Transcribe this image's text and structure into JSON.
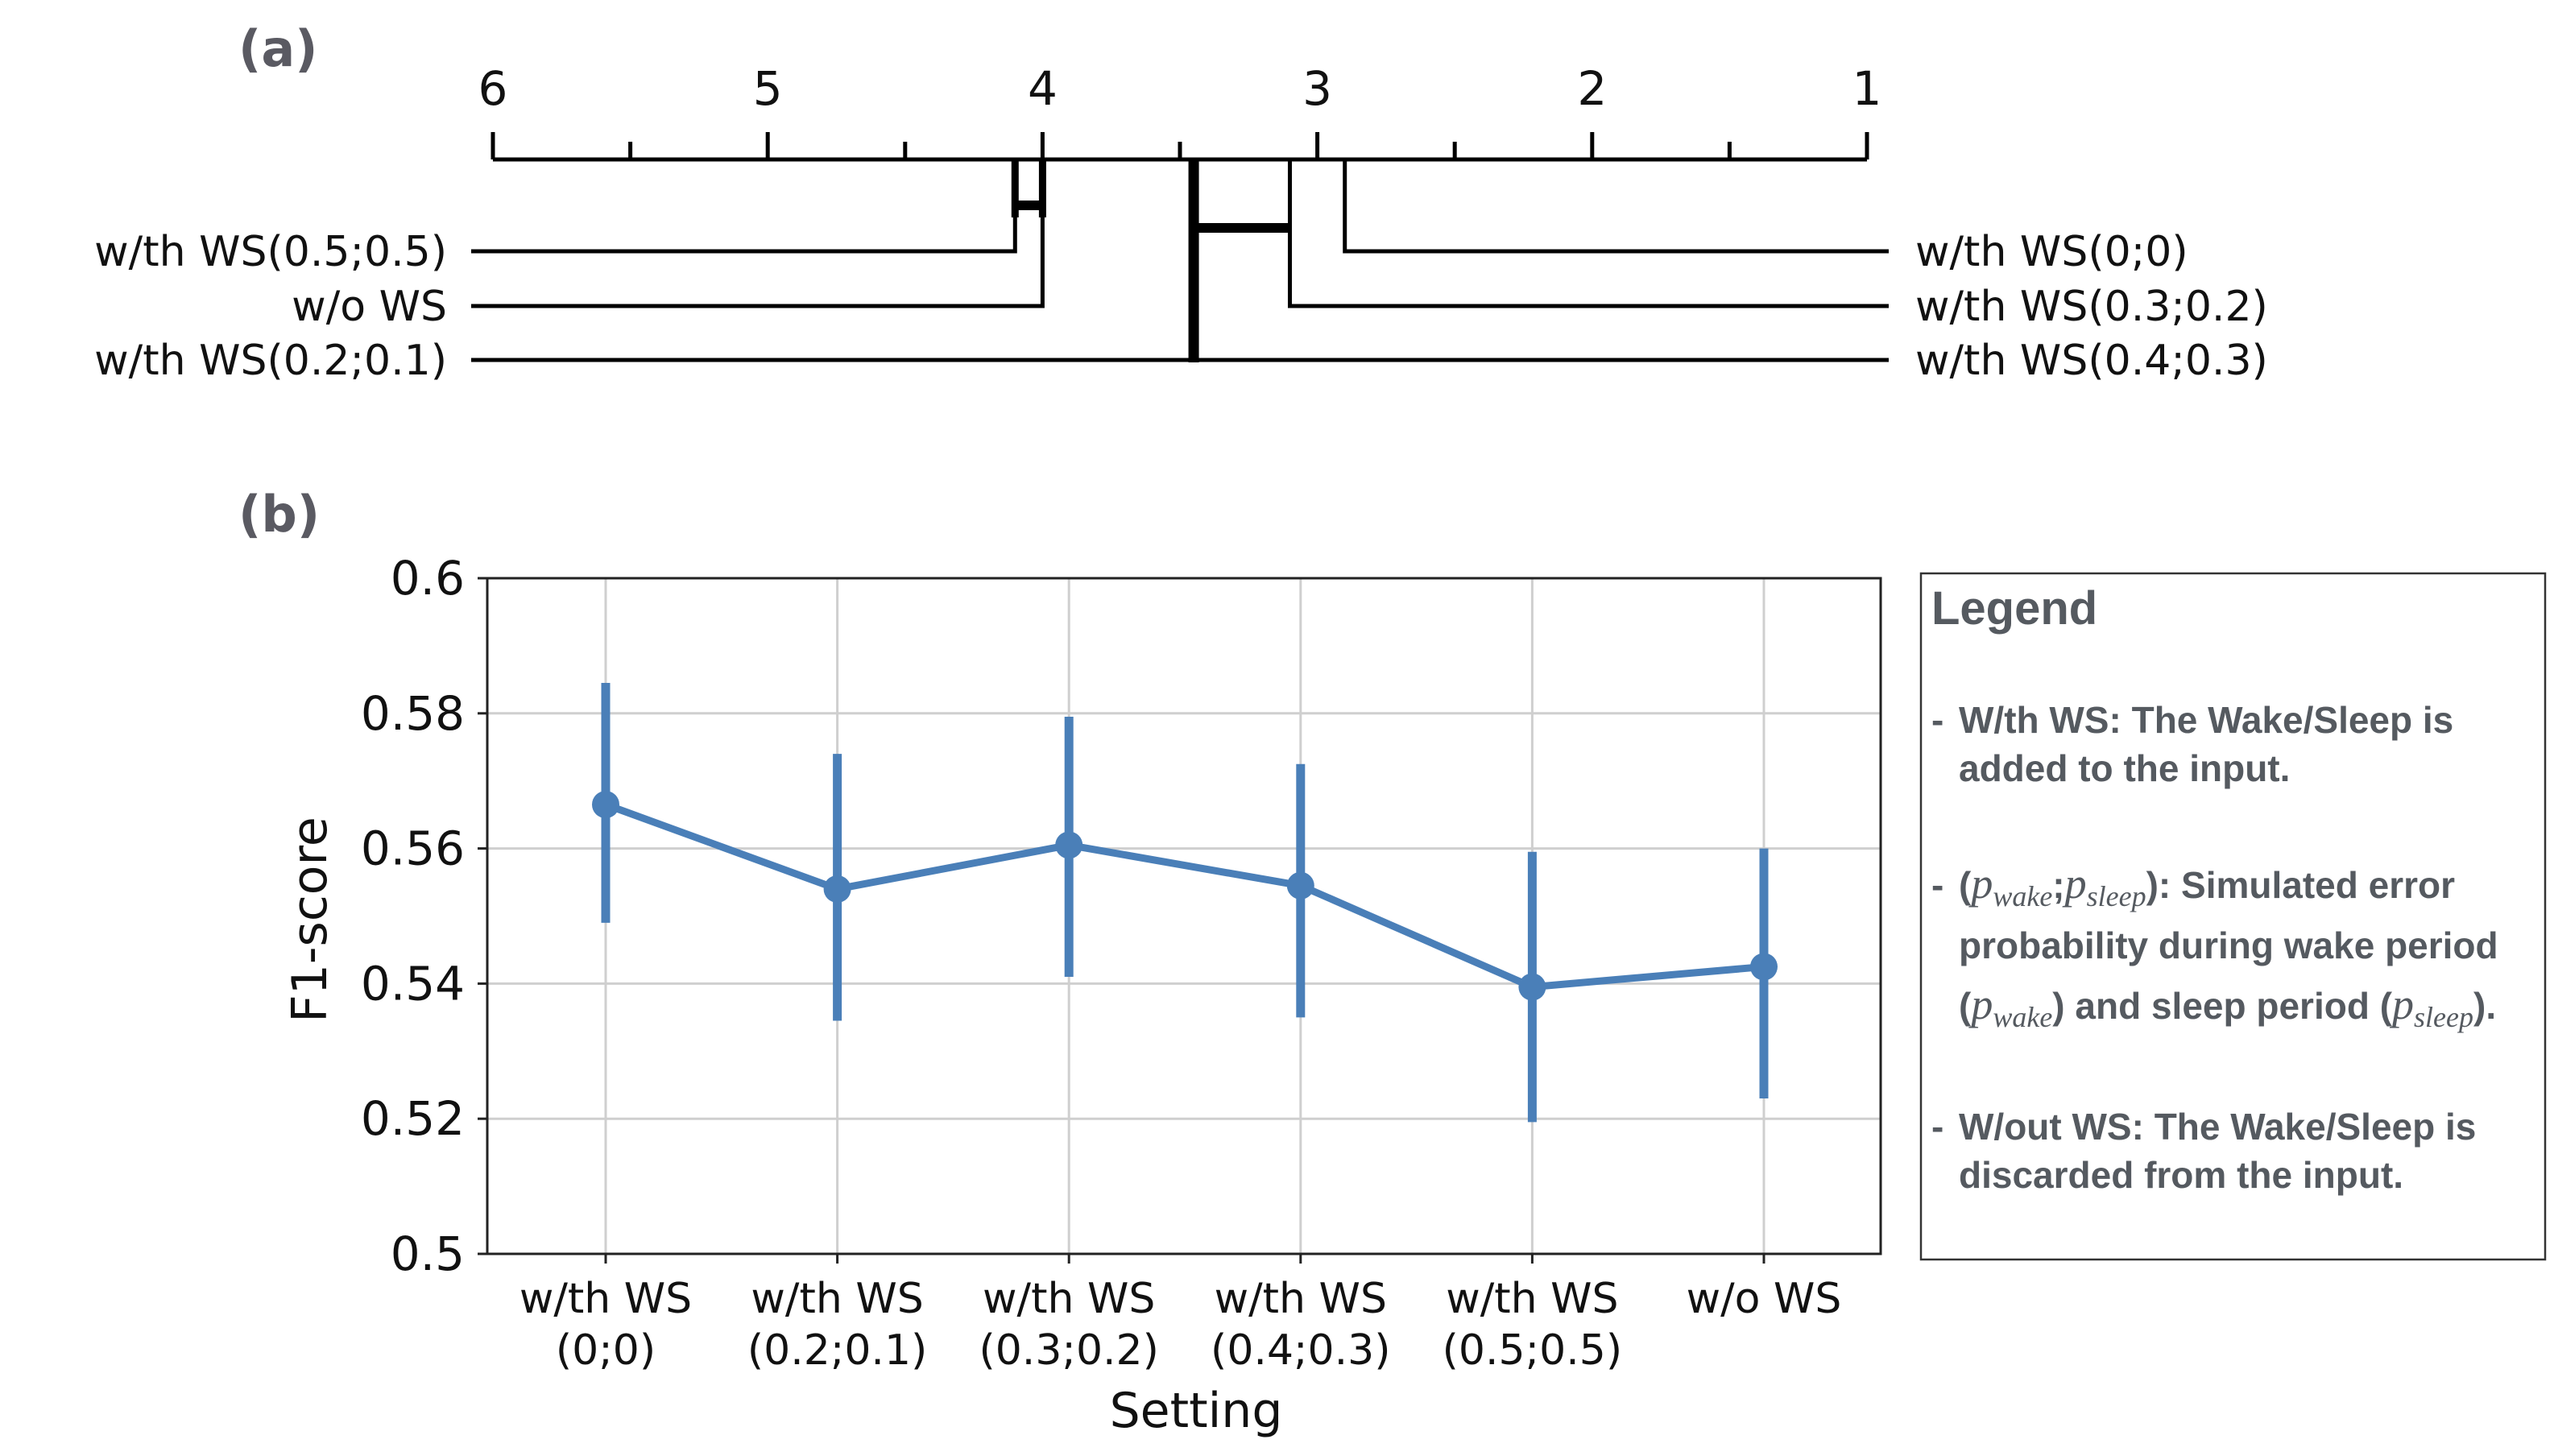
{
  "panels": {
    "a": "(a)",
    "b": "(b)"
  },
  "chart_data": [
    {
      "type": "critical-difference",
      "axis_ticks": [
        "6",
        "5",
        "4",
        "3",
        "2",
        "1"
      ],
      "axis_range": [
        6,
        1
      ],
      "methods": [
        {
          "name": "w/th WS(0.5;0.5)",
          "rank": 4.1,
          "side": "left"
        },
        {
          "name": "w/o WS",
          "rank": 4.0,
          "side": "left"
        },
        {
          "name": "w/th WS(0.2;0.1)",
          "rank": 3.45,
          "side": "left"
        },
        {
          "name": "w/th WS(0;0)",
          "rank": 2.9,
          "side": "right"
        },
        {
          "name": "w/th WS(0.3;0.2)",
          "rank": 3.1,
          "side": "right"
        },
        {
          "name": "w/th WS(0.4;0.3)",
          "rank": 3.45,
          "side": "right"
        }
      ],
      "cliques": [
        {
          "from": 4.1,
          "to": 4.0
        },
        {
          "from": 3.45,
          "to": 3.1
        }
      ]
    },
    {
      "type": "line",
      "categories": [
        "w/th WS\n(0;0)",
        "w/th WS\n(0.2;0.1)",
        "w/th WS\n(0.3;0.2)",
        "w/th WS\n(0.4;0.3)",
        "w/th WS\n(0.5;0.5)",
        "w/o WS"
      ],
      "values": [
        0.5665,
        0.554,
        0.5605,
        0.5545,
        0.5395,
        0.5425
      ],
      "err_low": [
        0.549,
        0.5345,
        0.541,
        0.535,
        0.5195,
        0.523
      ],
      "err_high": [
        0.5845,
        0.574,
        0.5795,
        0.5725,
        0.5595,
        0.56
      ],
      "ylim": [
        0.5,
        0.6
      ],
      "yticks": [
        "0.5",
        "0.52",
        "0.54",
        "0.56",
        "0.58",
        "0.6"
      ],
      "xlabel": "Setting",
      "ylabel": "F1-score",
      "grid": true,
      "color": "#4a7fb8"
    }
  ],
  "legend": {
    "title": "Legend",
    "items": [
      {
        "lines": [
          "W/th WS: The Wake/Sleep is",
          "added to the input."
        ]
      },
      {
        "lines": [
          "(p_wake;p_sleep): Simulated error",
          "probability during wake period",
          "(p_wake) and sleep period (p_sleep)."
        ]
      },
      {
        "lines": [
          "W/out WS: The Wake/Sleep is",
          "discarded from the input."
        ]
      }
    ]
  }
}
